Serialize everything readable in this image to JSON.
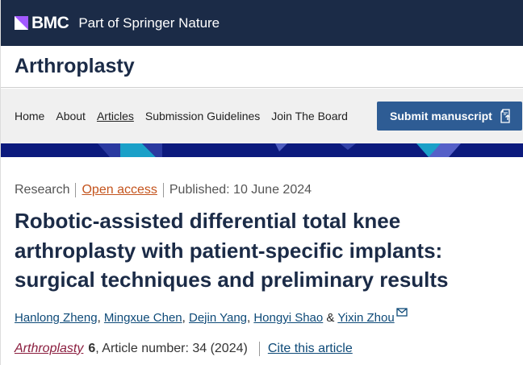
{
  "brand": {
    "logo": "BMC",
    "tagline": "Part of Springer Nature"
  },
  "journal": {
    "title": "Arthroplasty"
  },
  "nav": {
    "items": [
      {
        "label": "Home"
      },
      {
        "label": "About"
      },
      {
        "label": "Articles",
        "active": true
      },
      {
        "label": "Submission Guidelines"
      },
      {
        "label": "Join The Board"
      }
    ],
    "submit_label": "Submit manuscript",
    "submit_icon": "external-submit-icon"
  },
  "article": {
    "type": "Research",
    "access": "Open access",
    "published": "Published: 10 June 2024",
    "title": "Robotic-assisted differential total knee arthroplasty with patient-specific implants: surgical techniques and preliminary results",
    "authors": [
      "Hanlong Zheng",
      "Mingxue Chen",
      "Dejin Yang",
      "Hongyi Shao",
      "Yixin Zhou"
    ],
    "amp": "&",
    "journal": "Arthroplasty",
    "volume": "6",
    "article_number": ", Article number: 34 (2024)",
    "cite_label": "Cite this article"
  },
  "colors": {
    "topbar": "#1b2b47",
    "accent": "#2e5c94",
    "open_access": "#c4541d",
    "banner": "#0c1a7d"
  }
}
